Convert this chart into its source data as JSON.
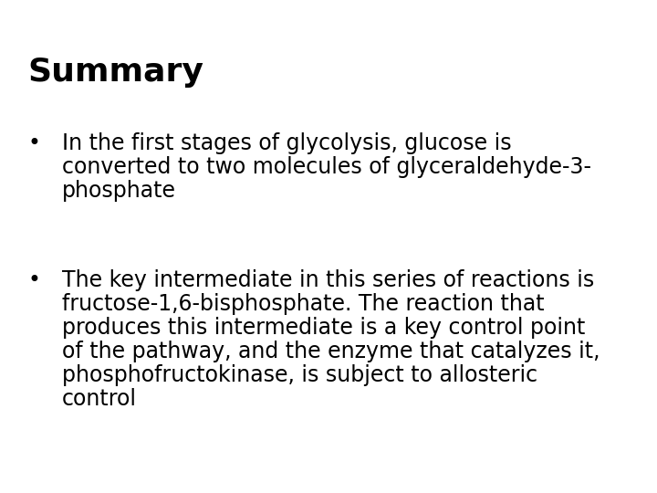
{
  "title": "Summary",
  "title_fontsize": 26,
  "title_fontweight": "bold",
  "bullet1_line1": "In the first stages of glycolysis, glucose is",
  "bullet1_line2": "converted to two molecules of glyceraldehyde-3-",
  "bullet1_line3": "phosphate",
  "bullet2_line1": "The key intermediate in this series of reactions is",
  "bullet2_line2": "fructose-1,6-bisphosphate. The reaction that",
  "bullet2_line3": "produces this intermediate is a key control point",
  "bullet2_line4": "of the pathway, and the enzyme that catalyzes it,",
  "bullet2_line5": "phosphofructokinase, is subject to allosteric",
  "bullet2_line6": "control",
  "bullet_fontsize": 17,
  "background_color": "#ffffff",
  "text_color": "#000000"
}
